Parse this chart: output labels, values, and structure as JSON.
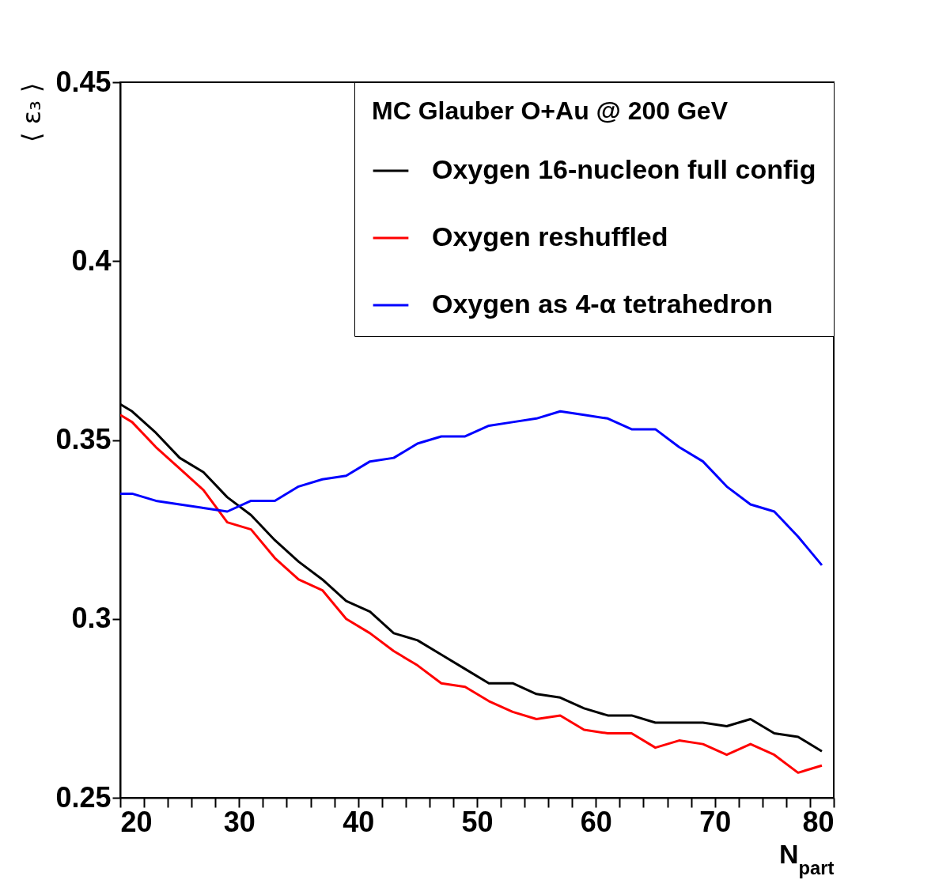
{
  "chart_data": {
    "type": "line",
    "legend_title": "MC Glauber O+Au @ 200 GeV",
    "xlabel": "N$_{part}$",
    "ylabel": "⟨ ε₃ ⟩",
    "x": [
      20,
      21,
      23,
      25,
      27,
      29,
      31,
      33,
      35,
      37,
      39,
      41,
      43,
      45,
      47,
      49,
      51,
      53,
      55,
      57,
      59,
      61,
      63,
      65,
      67,
      69,
      71,
      73,
      75,
      77,
      79
    ],
    "series": [
      {
        "name": "Oxygen 16-nucleon full config",
        "color": "#000000",
        "values": [
          0.36,
          0.358,
          0.352,
          0.345,
          0.341,
          0.334,
          0.329,
          0.322,
          0.316,
          0.311,
          0.305,
          0.302,
          0.296,
          0.294,
          0.29,
          0.286,
          0.282,
          0.282,
          0.279,
          0.278,
          0.275,
          0.273,
          0.273,
          0.271,
          0.271,
          0.271,
          0.27,
          0.272,
          0.268,
          0.267,
          0.263
        ]
      },
      {
        "name": "Oxygen reshuffled",
        "color": "#ff0000",
        "values": [
          0.357,
          0.355,
          0.348,
          0.342,
          0.336,
          0.327,
          0.325,
          0.317,
          0.311,
          0.308,
          0.3,
          0.296,
          0.291,
          0.287,
          0.282,
          0.281,
          0.277,
          0.274,
          0.272,
          0.273,
          0.269,
          0.268,
          0.268,
          0.264,
          0.266,
          0.265,
          0.262,
          0.265,
          0.262,
          0.257,
          0.259
        ]
      },
      {
        "name": "Oxygen as 4-α tetrahedron",
        "color": "#0000ff",
        "values": [
          0.335,
          0.335,
          0.333,
          0.332,
          0.331,
          0.33,
          0.333,
          0.333,
          0.337,
          0.339,
          0.34,
          0.344,
          0.345,
          0.349,
          0.351,
          0.351,
          0.354,
          0.355,
          0.356,
          0.358,
          0.357,
          0.356,
          0.353,
          0.353,
          0.348,
          0.344,
          0.337,
          0.332,
          0.33,
          0.323,
          0.315
        ]
      }
    ],
    "xlim": [
      20,
      80
    ],
    "xticks": [
      20,
      {
        "value": 22,
        "label": null
      },
      {
        "value": 24,
        "label": null
      },
      {
        "value": 26,
        "label": null
      },
      {
        "value": 28,
        "label": null
      },
      30,
      {
        "value": 32,
        "label": null
      },
      {
        "value": 34,
        "label": null
      },
      {
        "value": 36,
        "label": null
      },
      {
        "value": 38,
        "label": null
      },
      40,
      {
        "value": 42,
        "label": null
      },
      {
        "value": 44,
        "label": null
      },
      {
        "value": 46,
        "label": null
      },
      {
        "value": 48,
        "label": null
      },
      50,
      {
        "value": 52,
        "label": null
      },
      {
        "value": 54,
        "label": null
      },
      {
        "value": 56,
        "label": null
      },
      {
        "value": 58,
        "label": null
      },
      60,
      {
        "value": 62,
        "label": null
      },
      {
        "value": 64,
        "label": null
      },
      {
        "value": 66,
        "label": null
      },
      {
        "value": 68,
        "label": null
      },
      70,
      {
        "value": 72,
        "label": null
      },
      {
        "value": 74,
        "label": null
      },
      {
        "value": 76,
        "label": null
      },
      {
        "value": 78,
        "label": null
      },
      80
    ],
    "ylim": [
      0.25,
      0.45
    ],
    "yticks": [
      0.25,
      0.3,
      0.35,
      0.4,
      0.45
    ],
    "legend": "top right"
  }
}
